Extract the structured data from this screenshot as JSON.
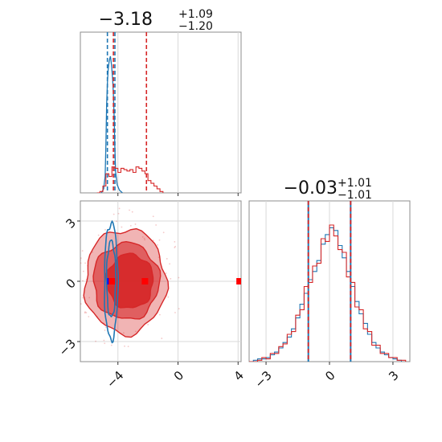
{
  "chart_data": {
    "type": "corner",
    "colors": {
      "series_a": "#1f77b4",
      "series_b": "#d62728",
      "truth_a": "#0000ff",
      "truth_b": "#ff0000",
      "grid": "#d9d9d9",
      "axes": "#8c8c8c"
    },
    "panels": [
      {
        "id": "hist_p1",
        "type": "histogram",
        "title_main": "−3.18",
        "title_sup": "+1.09",
        "title_sub": "−1.20",
        "xlim": [
          -6.5,
          4.2
        ],
        "xticks": [
          -4,
          0,
          4
        ],
        "grid": true,
        "series": [
          {
            "color_key": "series_a",
            "quantile_lines": [
              -4.7,
              -4.2
            ],
            "curve": [
              [
                -5.1,
                0.0
              ],
              [
                -4.95,
                0.03
              ],
              [
                -4.85,
                0.12
              ],
              [
                -4.8,
                0.35
              ],
              [
                -4.75,
                0.65
              ],
              [
                -4.7,
                0.8
              ],
              [
                -4.65,
                0.9
              ],
              [
                -4.6,
                0.95
              ],
              [
                -4.55,
                0.98
              ],
              [
                -4.5,
                1.0
              ],
              [
                -4.45,
                0.96
              ],
              [
                -4.4,
                0.9
              ],
              [
                -4.35,
                0.83
              ],
              [
                -4.3,
                0.72
              ],
              [
                -4.25,
                0.55
              ],
              [
                -4.2,
                0.32
              ],
              [
                -4.15,
                0.15
              ],
              [
                -4.05,
                0.06
              ],
              [
                -3.9,
                0.02
              ],
              [
                -3.7,
                0.0
              ]
            ]
          },
          {
            "color_key": "series_b",
            "quantile_lines": [
              -4.3,
              -2.1
            ],
            "steps": [
              [
                -5.4,
                0.0
              ],
              [
                -5.2,
                0.01
              ],
              [
                -5.0,
                0.05
              ],
              [
                -4.8,
                0.14
              ],
              [
                -4.6,
                0.12
              ],
              [
                -4.4,
                0.19
              ],
              [
                -4.2,
                0.18
              ],
              [
                -4.0,
                0.15
              ],
              [
                -3.8,
                0.18
              ],
              [
                -3.6,
                0.17
              ],
              [
                -3.4,
                0.16
              ],
              [
                -3.2,
                0.17
              ],
              [
                -3.0,
                0.15
              ],
              [
                -2.8,
                0.19
              ],
              [
                -2.6,
                0.18
              ],
              [
                -2.4,
                0.16
              ],
              [
                -2.2,
                0.14
              ],
              [
                -2.0,
                0.09
              ],
              [
                -1.8,
                0.07
              ],
              [
                -1.6,
                0.05
              ],
              [
                -1.4,
                0.03
              ],
              [
                -1.2,
                0.01
              ],
              [
                -1.0,
                0.0
              ]
            ]
          }
        ]
      },
      {
        "id": "scatter_p1_p2",
        "type": "contour",
        "xlim": [
          -6.5,
          4.2
        ],
        "ylim": [
          -4.0,
          4.0
        ],
        "xticks": [
          -4,
          0,
          4
        ],
        "yticks": [
          -3,
          0,
          3
        ],
        "grid": true,
        "series_b_contours": [
          {
            "level": "outer",
            "center": [
              -3.5,
              0.0
            ],
            "rx": 2.7,
            "ry": 2.6,
            "fill_opacity": 0.35
          },
          {
            "level": "middle",
            "center": [
              -3.45,
              0.0
            ],
            "rx": 2.2,
            "ry": 1.9,
            "fill_opacity": 0.6
          },
          {
            "level": "inner",
            "center": [
              -3.2,
              0.0
            ],
            "rx": 1.55,
            "ry": 1.35,
            "fill_opacity": 0.9
          }
        ],
        "series_a_contours": [
          {
            "level": "outer",
            "center": [
              -4.45,
              0.0
            ],
            "rx": 0.45,
            "ry": 2.9
          },
          {
            "level": "inner",
            "center": [
              -4.45,
              0.1
            ],
            "rx": 0.3,
            "ry": 1.9
          }
        ],
        "truth_markers": [
          {
            "color_key": "truth_a",
            "x": -4.5,
            "y": 0.0
          },
          {
            "color_key": "truth_b",
            "x": -4.4,
            "y": 0.0
          },
          {
            "color_key": "truth_b",
            "x": -2.2,
            "y": 0.0
          },
          {
            "color_key": "truth_b",
            "x": 4.1,
            "y": 0.0
          }
        ]
      },
      {
        "id": "hist_p2",
        "type": "histogram",
        "title_main": "−0.03",
        "title_sup": "+1.01",
        "title_sub": "−1.01",
        "xlim": [
          -3.8,
          3.8
        ],
        "xticks": [
          -3,
          0,
          3
        ],
        "grid": true,
        "quantile_lines": [
          -1.0,
          1.0
        ],
        "series": [
          {
            "color_key": "series_a",
            "steps": [
              [
                -3.8,
                0.0
              ],
              [
                -3.6,
                0.01
              ],
              [
                -3.4,
                0.02
              ],
              [
                -3.2,
                0.02
              ],
              [
                -3.0,
                0.03
              ],
              [
                -2.8,
                0.05
              ],
              [
                -2.6,
                0.07
              ],
              [
                -2.4,
                0.1
              ],
              [
                -2.2,
                0.14
              ],
              [
                -2.0,
                0.18
              ],
              [
                -1.8,
                0.24
              ],
              [
                -1.6,
                0.32
              ],
              [
                -1.4,
                0.42
              ],
              [
                -1.2,
                0.5
              ],
              [
                -1.0,
                0.6
              ],
              [
                -0.8,
                0.66
              ],
              [
                -0.6,
                0.74
              ],
              [
                -0.4,
                0.86
              ],
              [
                -0.2,
                0.93
              ],
              [
                0.0,
                0.98
              ],
              [
                0.2,
                0.96
              ],
              [
                0.4,
                0.85
              ],
              [
                0.6,
                0.76
              ],
              [
                0.8,
                0.66
              ],
              [
                1.0,
                0.55
              ],
              [
                1.2,
                0.44
              ],
              [
                1.4,
                0.35
              ],
              [
                1.6,
                0.28
              ],
              [
                1.8,
                0.2
              ],
              [
                2.0,
                0.14
              ],
              [
                2.2,
                0.1
              ],
              [
                2.4,
                0.07
              ],
              [
                2.6,
                0.05
              ],
              [
                2.8,
                0.03
              ],
              [
                3.0,
                0.02
              ],
              [
                3.2,
                0.01
              ],
              [
                3.4,
                0.0
              ]
            ]
          },
          {
            "color_key": "series_b",
            "steps": [
              [
                -3.8,
                0.0
              ],
              [
                -3.6,
                0.0
              ],
              [
                -3.4,
                0.01
              ],
              [
                -3.2,
                0.03
              ],
              [
                -3.0,
                0.02
              ],
              [
                -2.8,
                0.06
              ],
              [
                -2.6,
                0.06
              ],
              [
                -2.4,
                0.11
              ],
              [
                -2.2,
                0.13
              ],
              [
                -2.0,
                0.2
              ],
              [
                -1.8,
                0.22
              ],
              [
                -1.6,
                0.34
              ],
              [
                -1.4,
                0.38
              ],
              [
                -1.2,
                0.55
              ],
              [
                -1.0,
                0.58
              ],
              [
                -0.8,
                0.7
              ],
              [
                -0.6,
                0.72
              ],
              [
                -0.4,
                0.9
              ],
              [
                -0.2,
                0.88
              ],
              [
                0.0,
                1.0
              ],
              [
                0.2,
                0.92
              ],
              [
                0.4,
                0.82
              ],
              [
                0.6,
                0.8
              ],
              [
                0.8,
                0.62
              ],
              [
                1.0,
                0.58
              ],
              [
                1.2,
                0.4
              ],
              [
                1.4,
                0.38
              ],
              [
                1.6,
                0.24
              ],
              [
                1.8,
                0.22
              ],
              [
                2.0,
                0.12
              ],
              [
                2.2,
                0.12
              ],
              [
                2.4,
                0.06
              ],
              [
                2.6,
                0.06
              ],
              [
                2.8,
                0.03
              ],
              [
                3.0,
                0.03
              ],
              [
                3.2,
                0.01
              ],
              [
                3.4,
                0.01
              ],
              [
                3.6,
                0.0
              ]
            ]
          }
        ]
      }
    ]
  }
}
